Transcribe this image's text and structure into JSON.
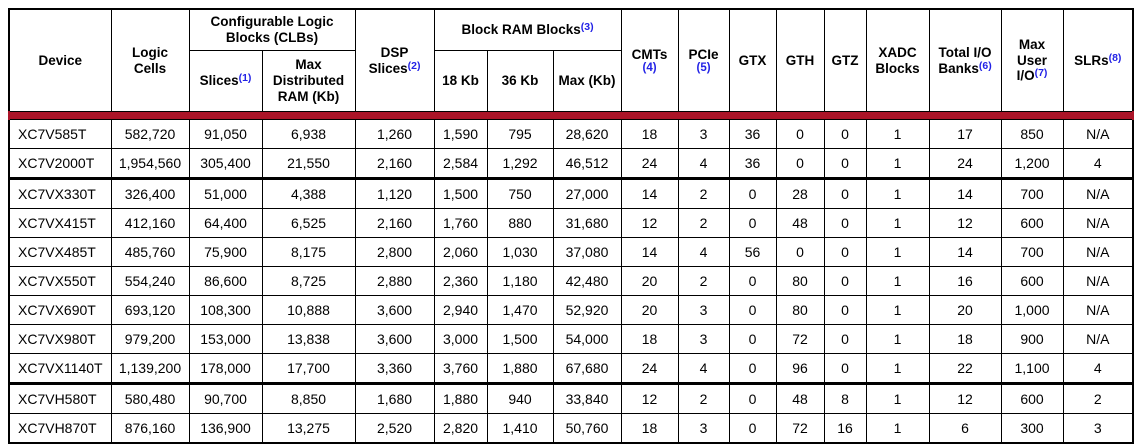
{
  "colors": {
    "header_rule": "#aa1428",
    "footnote_link": "#2222e6",
    "border": "#000000"
  },
  "table": {
    "header": {
      "device": "Device",
      "logic_cells": "Logic Cells",
      "clb_group": "Configurable Logic Blocks (CLBs)",
      "slices": "Slices",
      "slices_note": "(1)",
      "max_distributed_ram": "Max Distributed RAM (Kb)",
      "dsp_slices": "DSP Slices",
      "dsp_note": "(2)",
      "bram_group": "Block RAM Blocks",
      "bram_note": "(3)",
      "bram_18kb": "18 Kb",
      "bram_36kb": "36 Kb",
      "bram_max": "Max (Kb)",
      "cmts": "CMTs",
      "cmts_note": "(4)",
      "pcie": "PCIe",
      "pcie_note": "(5)",
      "gtx": "GTX",
      "gth": "GTH",
      "gtz": "GTZ",
      "xadc_blocks": "XADC Blocks",
      "total_io_banks": "Total I/O Banks",
      "total_io_note": "(6)",
      "max_user_io": "Max User I/O",
      "max_user_io_note": "(7)",
      "slrs": "SLRs",
      "slrs_note": "(8)"
    },
    "rows": [
      {
        "device": "XC7V585T",
        "cells": [
          "582,720",
          "91,050",
          "6,938",
          "1,260",
          "1,590",
          "795",
          "28,620",
          "18",
          "3",
          "36",
          "0",
          "0",
          "1",
          "17",
          "850",
          "N/A"
        ],
        "thick_bottom": false
      },
      {
        "device": "XC7V2000T",
        "cells": [
          "1,954,560",
          "305,400",
          "21,550",
          "2,160",
          "2,584",
          "1,292",
          "46,512",
          "24",
          "4",
          "36",
          "0",
          "0",
          "1",
          "24",
          "1,200",
          "4"
        ],
        "thick_bottom": true
      },
      {
        "device": "XC7VX330T",
        "cells": [
          "326,400",
          "51,000",
          "4,388",
          "1,120",
          "1,500",
          "750",
          "27,000",
          "14",
          "2",
          "0",
          "28",
          "0",
          "1",
          "14",
          "700",
          "N/A"
        ],
        "thick_bottom": false
      },
      {
        "device": "XC7VX415T",
        "cells": [
          "412,160",
          "64,400",
          "6,525",
          "2,160",
          "1,760",
          "880",
          "31,680",
          "12",
          "2",
          "0",
          "48",
          "0",
          "1",
          "12",
          "600",
          "N/A"
        ],
        "thick_bottom": false
      },
      {
        "device": "XC7VX485T",
        "cells": [
          "485,760",
          "75,900",
          "8,175",
          "2,800",
          "2,060",
          "1,030",
          "37,080",
          "14",
          "4",
          "56",
          "0",
          "0",
          "1",
          "14",
          "700",
          "N/A"
        ],
        "thick_bottom": false
      },
      {
        "device": "XC7VX550T",
        "cells": [
          "554,240",
          "86,600",
          "8,725",
          "2,880",
          "2,360",
          "1,180",
          "42,480",
          "20",
          "2",
          "0",
          "80",
          "0",
          "1",
          "16",
          "600",
          "N/A"
        ],
        "thick_bottom": false
      },
      {
        "device": "XC7VX690T",
        "cells": [
          "693,120",
          "108,300",
          "10,888",
          "3,600",
          "2,940",
          "1,470",
          "52,920",
          "20",
          "3",
          "0",
          "80",
          "0",
          "1",
          "20",
          "1,000",
          "N/A"
        ],
        "thick_bottom": false
      },
      {
        "device": "XC7VX980T",
        "cells": [
          "979,200",
          "153,000",
          "13,838",
          "3,600",
          "3,000",
          "1,500",
          "54,000",
          "18",
          "3",
          "0",
          "72",
          "0",
          "1",
          "18",
          "900",
          "N/A"
        ],
        "thick_bottom": false
      },
      {
        "device": "XC7VX1140T",
        "cells": [
          "1,139,200",
          "178,000",
          "17,700",
          "3,360",
          "3,760",
          "1,880",
          "67,680",
          "24",
          "4",
          "0",
          "96",
          "0",
          "1",
          "22",
          "1,100",
          "4"
        ],
        "thick_bottom": true
      },
      {
        "device": "XC7VH580T",
        "cells": [
          "580,480",
          "90,700",
          "8,850",
          "1,680",
          "1,880",
          "940",
          "33,840",
          "12",
          "2",
          "0",
          "48",
          "8",
          "1",
          "12",
          "600",
          "2"
        ],
        "thick_bottom": false
      },
      {
        "device": "XC7VH870T",
        "cells": [
          "876,160",
          "136,900",
          "13,275",
          "2,520",
          "2,820",
          "1,410",
          "50,760",
          "18",
          "3",
          "0",
          "72",
          "16",
          "1",
          "6",
          "300",
          "3"
        ],
        "thick_bottom": false
      }
    ]
  }
}
